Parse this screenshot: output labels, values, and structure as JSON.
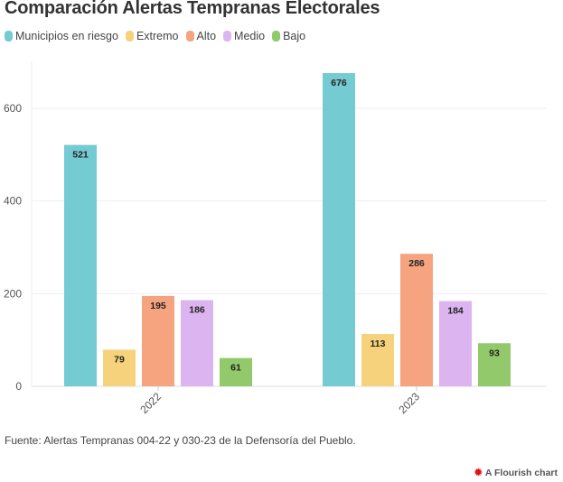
{
  "chart_data": {
    "type": "bar",
    "title": "Comparación Alertas Tempranas Electorales",
    "categories": [
      "2022",
      "2023"
    ],
    "series": [
      {
        "name": "Municipios en riesgo",
        "color": "#74cbd2",
        "values": [
          521,
          676
        ]
      },
      {
        "name": "Extremo",
        "color": "#f6d27c",
        "values": [
          79,
          113
        ]
      },
      {
        "name": "Alto",
        "color": "#f6a37f",
        "values": [
          195,
          286
        ]
      },
      {
        "name": "Medio",
        "color": "#dcb5f0",
        "values": [
          186,
          184
        ]
      },
      {
        "name": "Bajo",
        "color": "#92c96a",
        "values": [
          61,
          93
        ]
      }
    ],
    "yticks": [
      "0",
      "200",
      "400",
      "600"
    ],
    "ylim": [
      0,
      700
    ],
    "xlabel": "",
    "ylabel": "",
    "grid": true,
    "legend": "top-left"
  },
  "source": "Fuente: Alertas Tempranas 004-22 y 030-23 de la Defensoría del Pueblo.",
  "credit": "A Flourish chart"
}
